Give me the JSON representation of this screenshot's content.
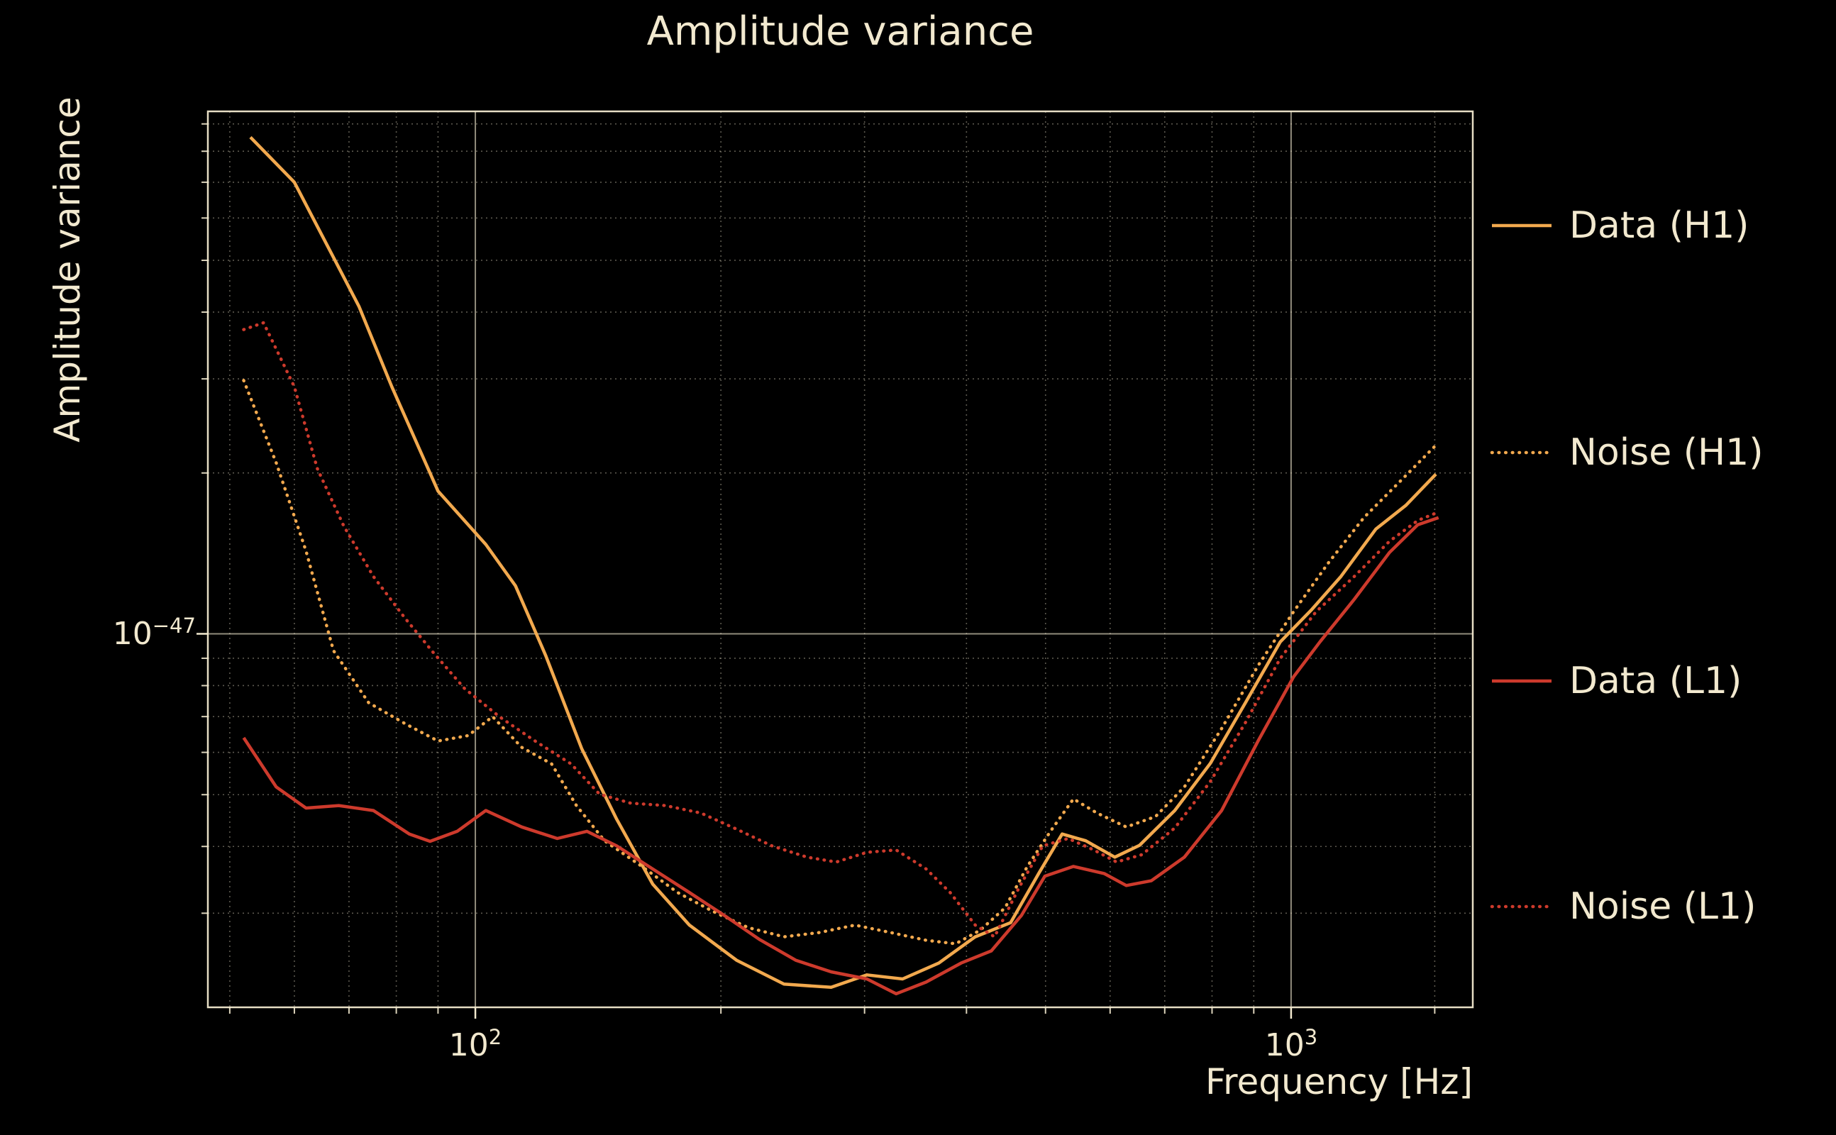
{
  "title": "Amplitude variance",
  "axes": {
    "x_label": "Frequency [Hz]",
    "y_label": "Amplitude variance",
    "x_ticks": [
      {
        "base": "10",
        "exp": "2"
      },
      {
        "base": "10",
        "exp": "3"
      }
    ],
    "y_ticks": [
      {
        "base": "10",
        "exp": "−47"
      }
    ]
  },
  "colors": {
    "background": "#000000",
    "text": "#f2e9cf",
    "grid": "#f2e9cf",
    "h1_gold": "#f2a94e",
    "l1_red": "#cd3a2c"
  },
  "chart_data": {
    "type": "line",
    "title": "Amplitude variance",
    "xlabel": "Frequency [Hz]",
    "ylabel": "Amplitude variance",
    "x_scale": "log",
    "y_scale": "log",
    "xlim": [
      47,
      1670
    ],
    "ylim": [
      2e-48,
      9.5e-47
    ],
    "grid": true,
    "legend_position": "right-outside",
    "x_major_ticks": [
      100,
      1000
    ],
    "x_minor_ticks": [
      50,
      60,
      70,
      80,
      90,
      200,
      300,
      400,
      500,
      600,
      700,
      800,
      900,
      1500
    ],
    "y_major_ticks": [
      1e-47
    ],
    "y_minor_ticks": [
      3e-48,
      4e-48,
      5e-48,
      6e-48,
      7e-48,
      8e-48,
      9e-48,
      2e-47,
      3e-47,
      4e-47,
      5e-47,
      6e-47,
      7e-47,
      8e-47,
      9e-47
    ],
    "series": [
      {
        "label": "Data (H1)",
        "color": "#f2a94e",
        "style": "solid",
        "points": [
          [
            53,
            8.5e-47
          ],
          [
            60,
            7e-47
          ],
          [
            72,
            4.1e-47
          ],
          [
            79,
            2.9e-47
          ],
          [
            90,
            1.85e-47
          ],
          [
            103,
            1.47e-47
          ],
          [
            112,
            1.23e-47
          ],
          [
            122,
            9.1e-48
          ],
          [
            135,
            6.1e-48
          ],
          [
            149,
            4.5e-48
          ],
          [
            165,
            3.4e-48
          ],
          [
            183,
            2.85e-48
          ],
          [
            209,
            2.45e-48
          ],
          [
            239,
            2.21e-48
          ],
          [
            273,
            2.18e-48
          ],
          [
            302,
            2.3e-48
          ],
          [
            334,
            2.26e-48
          ],
          [
            370,
            2.42e-48
          ],
          [
            410,
            2.71e-48
          ],
          [
            453,
            2.88e-48
          ],
          [
            491,
            3.57e-48
          ],
          [
            524,
            4.22e-48
          ],
          [
            560,
            4.1e-48
          ],
          [
            608,
            3.82e-48
          ],
          [
            652,
            4.02e-48
          ],
          [
            720,
            4.67e-48
          ],
          [
            796,
            5.72e-48
          ],
          [
            879,
            7.43e-48
          ],
          [
            970,
            9.66e-48
          ],
          [
            1060,
            1.11e-47
          ],
          [
            1151,
            1.28e-47
          ],
          [
            1270,
            1.57e-47
          ],
          [
            1383,
            1.74e-47
          ],
          [
            1505,
            1.99e-47
          ]
        ]
      },
      {
        "label": "Noise (H1)",
        "color": "#f2a94e",
        "style": "dotted",
        "points": [
          [
            52,
            2.98e-47
          ],
          [
            57,
            2.09e-47
          ],
          [
            62,
            1.43e-47
          ],
          [
            67,
            9.3e-48
          ],
          [
            74,
            7.43e-48
          ],
          [
            82,
            6.79e-48
          ],
          [
            90,
            6.3e-48
          ],
          [
            98,
            6.45e-48
          ],
          [
            105,
            7e-48
          ],
          [
            114,
            6.13e-48
          ],
          [
            124,
            5.71e-48
          ],
          [
            133,
            4.77e-48
          ],
          [
            144,
            4.1e-48
          ],
          [
            160,
            3.67e-48
          ],
          [
            177,
            3.28e-48
          ],
          [
            195,
            3.03e-48
          ],
          [
            216,
            2.82e-48
          ],
          [
            239,
            2.71e-48
          ],
          [
            264,
            2.76e-48
          ],
          [
            292,
            2.85e-48
          ],
          [
            323,
            2.76e-48
          ],
          [
            357,
            2.67e-48
          ],
          [
            388,
            2.63e-48
          ],
          [
            416,
            2.79e-48
          ],
          [
            446,
            3.07e-48
          ],
          [
            475,
            3.67e-48
          ],
          [
            507,
            4.27e-48
          ],
          [
            541,
            4.91e-48
          ],
          [
            578,
            4.62e-48
          ],
          [
            628,
            4.35e-48
          ],
          [
            682,
            4.55e-48
          ],
          [
            740,
            5.17e-48
          ],
          [
            822,
            6.65e-48
          ],
          [
            912,
            8.74e-48
          ],
          [
            1007,
            1.1e-47
          ],
          [
            1112,
            1.36e-47
          ],
          [
            1228,
            1.65e-47
          ],
          [
            1356,
            1.92e-47
          ],
          [
            1516,
            2.28e-47
          ]
        ]
      },
      {
        "label": "Data (L1)",
        "color": "#cd3a2c",
        "style": "solid",
        "points": [
          [
            52,
            6.39e-48
          ],
          [
            57,
            5.17e-48
          ],
          [
            62,
            4.72e-48
          ],
          [
            68,
            4.77e-48
          ],
          [
            75,
            4.67e-48
          ],
          [
            83,
            4.22e-48
          ],
          [
            88,
            4.09e-48
          ],
          [
            95,
            4.27e-48
          ],
          [
            103,
            4.67e-48
          ],
          [
            114,
            4.35e-48
          ],
          [
            126,
            4.14e-48
          ],
          [
            137,
            4.27e-48
          ],
          [
            149,
            4.01e-48
          ],
          [
            165,
            3.63e-48
          ],
          [
            183,
            3.28e-48
          ],
          [
            202,
            2.97e-48
          ],
          [
            223,
            2.68e-48
          ],
          [
            247,
            2.45e-48
          ],
          [
            273,
            2.33e-48
          ],
          [
            302,
            2.26e-48
          ],
          [
            328,
            2.12e-48
          ],
          [
            357,
            2.23e-48
          ],
          [
            394,
            2.42e-48
          ],
          [
            429,
            2.55e-48
          ],
          [
            467,
            2.97e-48
          ],
          [
            499,
            3.52e-48
          ],
          [
            541,
            3.67e-48
          ],
          [
            590,
            3.56e-48
          ],
          [
            628,
            3.38e-48
          ],
          [
            674,
            3.45e-48
          ],
          [
            740,
            3.82e-48
          ],
          [
            822,
            4.67e-48
          ],
          [
            912,
            6.32e-48
          ],
          [
            1007,
            8.31e-48
          ],
          [
            1085,
            9.66e-48
          ],
          [
            1195,
            1.16e-47
          ],
          [
            1320,
            1.42e-47
          ],
          [
            1430,
            1.6e-47
          ],
          [
            1516,
            1.65e-47
          ]
        ]
      },
      {
        "label": "Noise (L1)",
        "color": "#cd3a2c",
        "style": "dotted",
        "points": [
          [
            52,
            3.71e-47
          ],
          [
            55,
            3.82e-47
          ],
          [
            60,
            2.9e-47
          ],
          [
            64,
            2.04e-47
          ],
          [
            69,
            1.59e-47
          ],
          [
            75,
            1.28e-47
          ],
          [
            82,
            1.07e-47
          ],
          [
            89,
            9.19e-48
          ],
          [
            97,
            7.9e-48
          ],
          [
            107,
            7e-48
          ],
          [
            118,
            6.32e-48
          ],
          [
            131,
            5.71e-48
          ],
          [
            142,
            5.01e-48
          ],
          [
            155,
            4.82e-48
          ],
          [
            171,
            4.77e-48
          ],
          [
            189,
            4.62e-48
          ],
          [
            209,
            4.31e-48
          ],
          [
            231,
            4.01e-48
          ],
          [
            255,
            3.82e-48
          ],
          [
            277,
            3.74e-48
          ],
          [
            302,
            3.9e-48
          ],
          [
            328,
            3.94e-48
          ],
          [
            357,
            3.63e-48
          ],
          [
            382,
            3.28e-48
          ],
          [
            410,
            2.85e-48
          ],
          [
            433,
            2.71e-48
          ],
          [
            464,
            3.35e-48
          ],
          [
            496,
            4.01e-48
          ],
          [
            533,
            4.14e-48
          ],
          [
            573,
            3.94e-48
          ],
          [
            611,
            3.74e-48
          ],
          [
            656,
            3.86e-48
          ],
          [
            720,
            4.33e-48
          ],
          [
            796,
            5.29e-48
          ],
          [
            879,
            6.82e-48
          ],
          [
            970,
            9e-48
          ],
          [
            1073,
            1.1e-47
          ],
          [
            1195,
            1.28e-47
          ],
          [
            1320,
            1.49e-47
          ],
          [
            1430,
            1.63e-47
          ],
          [
            1516,
            1.69e-47
          ]
        ]
      }
    ]
  }
}
